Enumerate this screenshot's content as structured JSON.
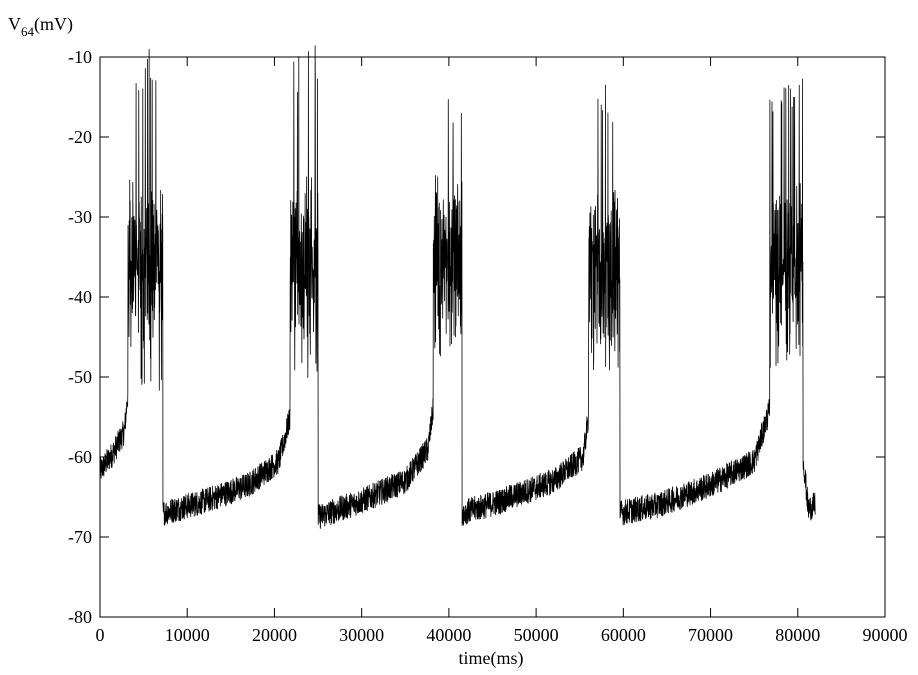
{
  "chart_data": {
    "type": "line",
    "title": "",
    "xlabel": "time(ms)",
    "ylabel": {
      "base": "V",
      "subscript": "64",
      "suffix": "(mV)"
    },
    "xlim": [
      0,
      90000
    ],
    "ylim": [
      -80,
      -10
    ],
    "x_ticks": [
      0,
      10000,
      20000,
      30000,
      40000,
      50000,
      60000,
      70000,
      80000,
      90000
    ],
    "y_ticks": [
      -80,
      -70,
      -60,
      -50,
      -40,
      -30,
      -20,
      -10
    ],
    "grid": false,
    "legend": "none",
    "line_color": "#000000",
    "x_end": 82000,
    "bursts": [
      {
        "start": 3200,
        "end": 7200,
        "peak": -14.8,
        "low": -50.1
      },
      {
        "start": 21800,
        "end": 25000,
        "peak": -14.5,
        "low": -47.8
      },
      {
        "start": 38200,
        "end": 41500,
        "peak": -19.6,
        "low": -45.2
      },
      {
        "start": 56000,
        "end": 59600,
        "peak": -19.2,
        "low": -46.8
      },
      {
        "start": 76800,
        "end": 80600,
        "peak": -17.1,
        "low": -45.9
      }
    ],
    "baseline": [
      [
        0,
        -61.8
      ],
      [
        1500,
        -59.5
      ],
      [
        2800,
        -56.8
      ],
      [
        3200,
        -52.0
      ],
      [
        7200,
        -67.0
      ],
      [
        12000,
        -65.5
      ],
      [
        17000,
        -63.5
      ],
      [
        20500,
        -60.5
      ],
      [
        21800,
        -55.0
      ],
      [
        25000,
        -67.5
      ],
      [
        30000,
        -65.5
      ],
      [
        35000,
        -63.0
      ],
      [
        37600,
        -59.0
      ],
      [
        38200,
        -54.0
      ],
      [
        41500,
        -67.0
      ],
      [
        46000,
        -65.5
      ],
      [
        52000,
        -63.0
      ],
      [
        55400,
        -60.0
      ],
      [
        56000,
        -55.0
      ],
      [
        59600,
        -67.0
      ],
      [
        64000,
        -66.0
      ],
      [
        70000,
        -63.5
      ],
      [
        75000,
        -60.5
      ],
      [
        76800,
        -54.0
      ],
      [
        80600,
        -60.0
      ],
      [
        81200,
        -66.5
      ],
      [
        82000,
        -66.0
      ]
    ]
  }
}
